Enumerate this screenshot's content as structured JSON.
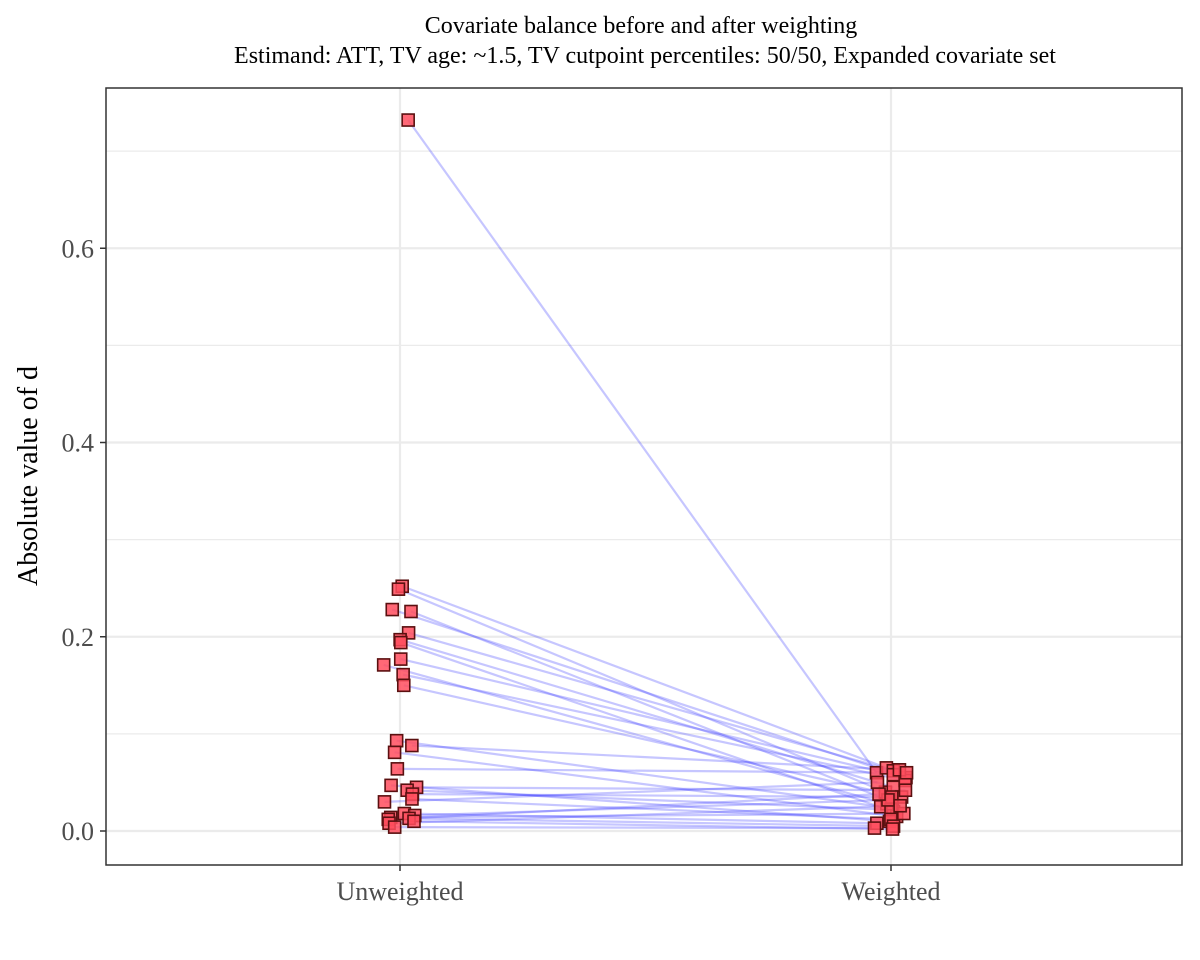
{
  "chart_data": {
    "type": "line",
    "title": "Covariate balance before and after weighting",
    "subtitle": "Estimand: ATT, TV age: ~1.5, TV cutpoint percentiles: 50/50, Expanded covariate set",
    "xlabel": "",
    "ylabel": "Absolute value of d",
    "categories": [
      "Unweighted",
      "Weighted"
    ],
    "ylim": [
      -0.035,
      0.765
    ],
    "yticks": [
      0.0,
      0.2,
      0.4,
      0.6
    ],
    "ytick_labels": [
      "0.0",
      "0.2",
      "0.4",
      "0.6"
    ],
    "grid": true,
    "legend": "none",
    "colors": {
      "point_fill": "#ff4d5e",
      "point_stroke": "#5a1010",
      "line": "#3333ff",
      "grid": "#ebebeb",
      "panel_border": "#333333"
    },
    "pairs": [
      {
        "unweighted": 0.732,
        "weighted": 0.06
      },
      {
        "unweighted": 0.252,
        "weighted": 0.065
      },
      {
        "unweighted": 0.249,
        "weighted": 0.04
      },
      {
        "unweighted": 0.228,
        "weighted": 0.055
      },
      {
        "unweighted": 0.226,
        "weighted": 0.03
      },
      {
        "unweighted": 0.204,
        "weighted": 0.062
      },
      {
        "unweighted": 0.197,
        "weighted": 0.045
      },
      {
        "unweighted": 0.194,
        "weighted": 0.02
      },
      {
        "unweighted": 0.177,
        "weighted": 0.058
      },
      {
        "unweighted": 0.171,
        "weighted": 0.028
      },
      {
        "unweighted": 0.161,
        "weighted": 0.052
      },
      {
        "unweighted": 0.15,
        "weighted": 0.035
      },
      {
        "unweighted": 0.093,
        "weighted": 0.025
      },
      {
        "unweighted": 0.088,
        "weighted": 0.063
      },
      {
        "unweighted": 0.081,
        "weighted": 0.015
      },
      {
        "unweighted": 0.064,
        "weighted": 0.06
      },
      {
        "unweighted": 0.047,
        "weighted": 0.01
      },
      {
        "unweighted": 0.045,
        "weighted": 0.042
      },
      {
        "unweighted": 0.042,
        "weighted": 0.022
      },
      {
        "unweighted": 0.038,
        "weighted": 0.035
      },
      {
        "unweighted": 0.033,
        "weighted": 0.012
      },
      {
        "unweighted": 0.03,
        "weighted": 0.05
      },
      {
        "unweighted": 0.018,
        "weighted": 0.008
      },
      {
        "unweighted": 0.016,
        "weighted": 0.032
      },
      {
        "unweighted": 0.014,
        "weighted": 0.018
      },
      {
        "unweighted": 0.013,
        "weighted": 0.005
      },
      {
        "unweighted": 0.012,
        "weighted": 0.038
      },
      {
        "unweighted": 0.01,
        "weighted": 0.002
      },
      {
        "unweighted": 0.008,
        "weighted": 0.026
      },
      {
        "unweighted": 0.004,
        "weighted": 0.003
      }
    ]
  }
}
